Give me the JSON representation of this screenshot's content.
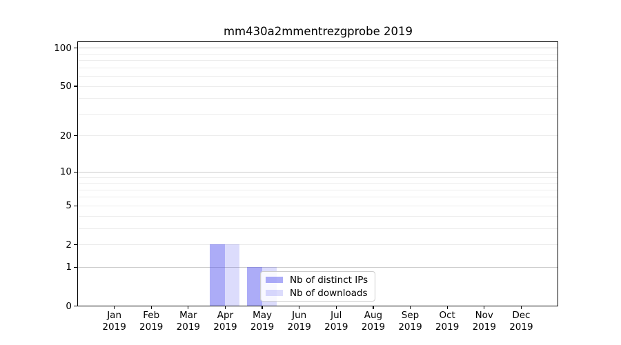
{
  "page": {
    "background": "#ffffff"
  },
  "chart_data": {
    "type": "bar",
    "title": "mm430a2mmentrezgprobe 2019",
    "categories": [
      "Jan 2019",
      "Feb 2019",
      "Mar 2019",
      "Apr 2019",
      "May 2019",
      "Jun 2019",
      "Jul 2019",
      "Aug 2019",
      "Sep 2019",
      "Oct 2019",
      "Nov 2019",
      "Dec 2019"
    ],
    "category_line1": [
      "Jan",
      "Feb",
      "Mar",
      "Apr",
      "May",
      "Jun",
      "Jul",
      "Aug",
      "Sep",
      "Oct",
      "Nov",
      "Dec"
    ],
    "category_line2": "2019",
    "series": [
      {
        "name": "Nb of distinct IPs",
        "color": "rgba(82,82,238,0.48)",
        "color_on_white": "#acacf7",
        "values": [
          0,
          0,
          0,
          2,
          1,
          0,
          0,
          0,
          0,
          0,
          0,
          0
        ]
      },
      {
        "name": "Nb of downloads",
        "color": "rgba(82,82,238,0.20)",
        "color_on_white": "#dcdcfc",
        "values": [
          0,
          0,
          0,
          2,
          1,
          0,
          0,
          0,
          0,
          0,
          0,
          0
        ]
      }
    ],
    "xlabel": "",
    "ylabel": "",
    "yscale": "log1p",
    "ylim": [
      0,
      113
    ],
    "y_ticks": [
      0,
      1,
      2,
      5,
      10,
      20,
      50,
      100
    ],
    "y_grid_major": [
      1,
      10,
      100
    ],
    "y_grid_minor": [
      2,
      3,
      4,
      5,
      6,
      7,
      8,
      9,
      20,
      30,
      40,
      50,
      60,
      70,
      80,
      90
    ],
    "grid": "horizontal",
    "legend": {
      "position": "lower center",
      "items": [
        "Nb of distinct IPs",
        "Nb of downloads"
      ]
    }
  },
  "colors": {
    "grid_major": "#cbcbcb",
    "grid_minor": "#ececec",
    "spine": "#000000",
    "text": "#000000",
    "legend_border": "#cccccc"
  }
}
